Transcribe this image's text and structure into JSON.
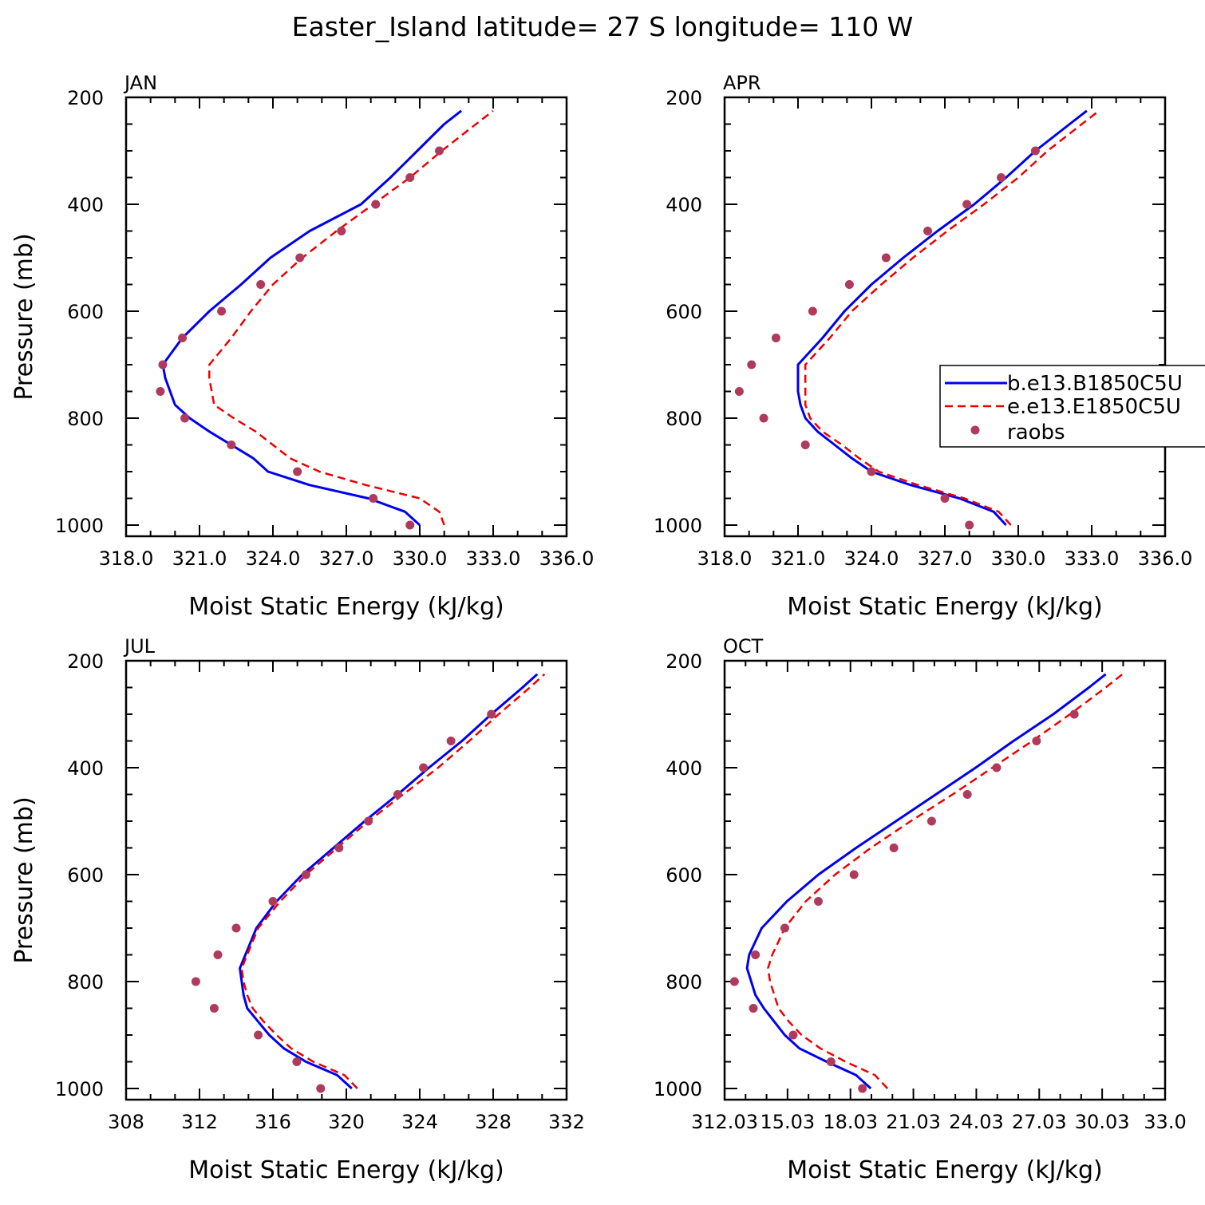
{
  "title": "Easter_Island  latitude= 27 S longitude= 110 W",
  "colors": {
    "model_b": "#0000ee",
    "model_e": "#ee0000",
    "raobs": "#b03a5b",
    "axis": "#000000"
  },
  "legend": {
    "entries": [
      {
        "label": "b.e13.B1850C5U",
        "style": "solid-blue-line"
      },
      {
        "label": "e.e13.E1850C5U",
        "style": "dashed-red-line"
      },
      {
        "label": "raobs",
        "style": "markers"
      }
    ],
    "placement": "right-of-APR-panel"
  },
  "chart_data": [
    {
      "type": "line",
      "panel": "JAN",
      "label": "JAN",
      "xlabel": "Moist Static Energy (kJ/kg)",
      "ylabel": "Pressure (mb)",
      "xlim": [
        318,
        336
      ],
      "ylim": [
        1020,
        200
      ],
      "y_inverted": true,
      "xticks": [
        "318.0",
        "321.0",
        "324.0",
        "327.0",
        "330.0",
        "333.0",
        "336.0"
      ],
      "yticks": [
        "200",
        "400",
        "600",
        "800",
        "1000"
      ],
      "series": [
        {
          "name": "b.e13.B1850C5U",
          "p": [
            1000,
            975,
            950,
            925,
            900,
            875,
            850,
            825,
            800,
            775,
            750,
            725,
            700,
            650,
            600,
            550,
            500,
            450,
            400,
            350,
            300,
            250,
            225
          ],
          "x": [
            330.0,
            329.4,
            327.9,
            325.5,
            323.8,
            323.2,
            322.3,
            321.4,
            320.6,
            320.0,
            319.8,
            319.6,
            319.5,
            320.3,
            321.4,
            322.7,
            323.9,
            325.5,
            327.6,
            328.8,
            329.9,
            331.0,
            331.7
          ]
        },
        {
          "name": "e.e13.E1850C5U",
          "p": [
            1000,
            975,
            950,
            925,
            900,
            875,
            850,
            825,
            800,
            775,
            750,
            725,
            700,
            650,
            600,
            550,
            500,
            450,
            400,
            350,
            300,
            250,
            225
          ],
          "x": [
            331.0,
            330.8,
            330.0,
            327.8,
            325.9,
            324.7,
            324.0,
            323.3,
            322.4,
            321.6,
            321.5,
            321.4,
            321.4,
            322.3,
            323.1,
            324.0,
            325.2,
            326.6,
            328.1,
            329.6,
            330.9,
            332.3,
            333.0
          ]
        },
        {
          "name": "raobs",
          "p": [
            1000,
            950,
            900,
            850,
            800,
            750,
            700,
            650,
            600,
            550,
            500,
            450,
            400,
            350,
            300
          ],
          "x": [
            329.6,
            328.1,
            325.0,
            322.3,
            320.4,
            319.4,
            319.5,
            320.3,
            321.9,
            323.5,
            325.1,
            326.8,
            328.2,
            329.6,
            330.8
          ]
        }
      ]
    },
    {
      "type": "line",
      "panel": "APR",
      "label": "APR",
      "xlabel": "Moist Static Energy (kJ/kg)",
      "ylabel": "",
      "xlim": [
        318,
        336
      ],
      "ylim": [
        1020,
        200
      ],
      "y_inverted": true,
      "xticks": [
        "318.0",
        "321.0",
        "324.0",
        "327.0",
        "330.0",
        "333.0",
        "336.0"
      ],
      "yticks": [
        "200",
        "400",
        "600",
        "800",
        "1000"
      ],
      "series": [
        {
          "name": "b.e13.B1850C5U",
          "p": [
            1000,
            975,
            950,
            925,
            900,
            875,
            850,
            825,
            800,
            775,
            750,
            725,
            700,
            650,
            600,
            550,
            500,
            450,
            400,
            350,
            300,
            250,
            225
          ],
          "x": [
            329.5,
            329.0,
            327.6,
            325.6,
            324.0,
            323.2,
            322.5,
            321.8,
            321.3,
            321.1,
            321.0,
            321.0,
            321.0,
            322.0,
            322.9,
            324.0,
            325.3,
            326.7,
            328.2,
            329.5,
            330.7,
            332.1,
            332.8
          ]
        },
        {
          "name": "e.e13.E1850C5U",
          "p": [
            1000,
            975,
            950,
            925,
            900,
            875,
            850,
            825,
            800,
            775,
            750,
            725,
            700,
            650,
            600,
            550,
            500,
            450,
            400,
            350,
            300,
            250,
            225
          ],
          "x": [
            329.7,
            329.2,
            327.8,
            325.9,
            324.3,
            323.5,
            322.8,
            322.0,
            321.5,
            321.3,
            321.3,
            321.3,
            321.3,
            322.3,
            323.2,
            324.4,
            325.7,
            327.1,
            328.6,
            330.0,
            331.2,
            332.6,
            333.3
          ]
        },
        {
          "name": "raobs",
          "p": [
            1000,
            950,
            900,
            850,
            800,
            750,
            700,
            650,
            600,
            550,
            500,
            450,
            400,
            350,
            300
          ],
          "x": [
            328.0,
            327.0,
            324.0,
            321.3,
            319.6,
            318.6,
            319.1,
            320.1,
            321.6,
            323.1,
            324.6,
            326.3,
            327.9,
            329.3,
            330.7
          ]
        }
      ]
    },
    {
      "type": "line",
      "panel": "JUL",
      "label": "JUL",
      "xlabel": "Moist Static Energy (kJ/kg)",
      "ylabel": "Pressure (mb)",
      "xlim": [
        308,
        332
      ],
      "ylim": [
        1020,
        200
      ],
      "y_inverted": true,
      "xticks": [
        "308",
        "312",
        "316",
        "320",
        "324",
        "328",
        "332"
      ],
      "yticks": [
        "200",
        "400",
        "600",
        "800",
        "1000"
      ],
      "series": [
        {
          "name": "b.e13.B1850C5U",
          "p": [
            1000,
            975,
            950,
            925,
            900,
            875,
            850,
            825,
            800,
            775,
            750,
            725,
            700,
            650,
            600,
            550,
            500,
            450,
            400,
            350,
            300,
            250,
            225
          ],
          "x": [
            320.3,
            319.5,
            317.8,
            316.6,
            315.8,
            315.2,
            314.6,
            314.4,
            314.3,
            314.2,
            314.5,
            314.8,
            315.1,
            316.2,
            317.6,
            319.3,
            321.0,
            322.8,
            324.5,
            326.3,
            327.9,
            329.6,
            330.4
          ]
        },
        {
          "name": "e.e13.E1850C5U",
          "p": [
            1000,
            975,
            950,
            925,
            900,
            875,
            850,
            825,
            800,
            775,
            750,
            725,
            700,
            650,
            600,
            550,
            500,
            450,
            400,
            350,
            300,
            250,
            225
          ],
          "x": [
            320.6,
            319.9,
            318.2,
            317.0,
            316.2,
            315.5,
            314.9,
            314.6,
            314.4,
            314.3,
            314.6,
            314.9,
            315.2,
            316.4,
            317.8,
            319.5,
            321.2,
            323.1,
            325.0,
            326.7,
            328.3,
            330.0,
            330.8
          ]
        },
        {
          "name": "raobs",
          "p": [
            1000,
            950,
            900,
            850,
            800,
            750,
            700,
            650,
            600,
            550,
            500,
            450,
            400,
            350,
            300
          ],
          "x": [
            318.6,
            317.3,
            315.2,
            312.8,
            311.8,
            313.0,
            314.0,
            316.0,
            317.8,
            319.6,
            321.2,
            322.8,
            324.2,
            325.7,
            327.9
          ]
        }
      ]
    },
    {
      "type": "line",
      "panel": "OCT",
      "label": "OCT",
      "xlabel": "Moist Static Energy (kJ/kg)",
      "ylabel": "",
      "xlim": [
        312.03,
        333.03
      ],
      "ylim": [
        1020,
        200
      ],
      "y_inverted": true,
      "xticks": [
        "312.03",
        "15.03",
        "18.03",
        "21.03",
        "24.03",
        "27.03",
        "30.03",
        "33.0"
      ],
      "xtick_values": [
        312.03,
        315.03,
        318.03,
        321.03,
        324.03,
        327.03,
        330.03,
        333.03
      ],
      "yticks": [
        "200",
        "400",
        "600",
        "800",
        "1000"
      ],
      "series": [
        {
          "name": "b.e13.B1850C5U",
          "p": [
            1000,
            975,
            950,
            925,
            900,
            875,
            850,
            825,
            800,
            775,
            750,
            725,
            700,
            650,
            600,
            550,
            500,
            450,
            400,
            350,
            300,
            250,
            225
          ],
          "x": [
            319.0,
            318.3,
            316.9,
            315.6,
            314.9,
            314.4,
            313.9,
            313.5,
            313.3,
            313.1,
            313.2,
            313.5,
            313.8,
            315.0,
            316.5,
            318.3,
            320.2,
            322.1,
            324.0,
            325.8,
            327.7,
            329.4,
            330.2
          ]
        },
        {
          "name": "e.e13.E1850C5U",
          "p": [
            1000,
            975,
            950,
            925,
            900,
            875,
            850,
            825,
            800,
            775,
            750,
            725,
            700,
            650,
            600,
            550,
            500,
            450,
            400,
            350,
            300,
            250,
            225
          ],
          "x": [
            319.8,
            319.2,
            317.8,
            316.6,
            315.7,
            315.1,
            314.6,
            314.4,
            314.2,
            314.1,
            314.3,
            314.6,
            314.9,
            315.9,
            317.3,
            319.0,
            320.9,
            322.9,
            324.8,
            326.7,
            328.5,
            330.2,
            331.0
          ]
        },
        {
          "name": "raobs",
          "p": [
            1000,
            950,
            900,
            850,
            800,
            750,
            700,
            650,
            600,
            550,
            500,
            450,
            400,
            350,
            300
          ],
          "x": [
            318.6,
            317.1,
            315.3,
            313.4,
            312.5,
            313.5,
            314.9,
            316.5,
            318.2,
            320.1,
            321.9,
            323.6,
            325.0,
            326.9,
            328.7
          ]
        }
      ]
    }
  ]
}
